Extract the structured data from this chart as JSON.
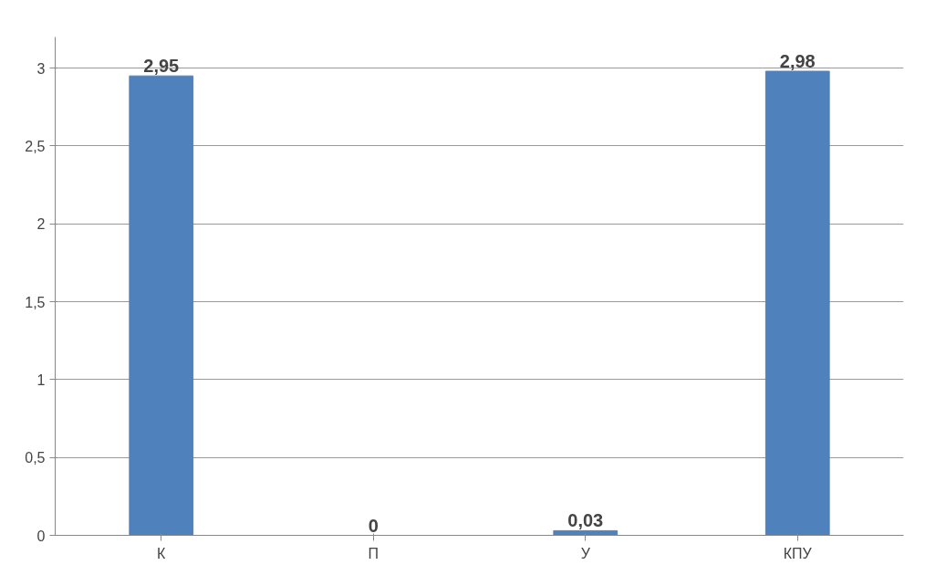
{
  "chart_data": {
    "type": "bar",
    "categories": [
      "К",
      "П",
      "У",
      "КПУ"
    ],
    "values": [
      2.95,
      0,
      0.03,
      2.98
    ],
    "value_labels": [
      "2,95",
      "0",
      "0,03",
      "2,98"
    ],
    "color": "#4f81bd",
    "ylim": [
      0,
      3.2
    ],
    "yticks": [
      0,
      {
        "value": 0.5,
        "label": "0,5"
      },
      1,
      {
        "value": 1.5,
        "label": "1,5"
      },
      2,
      {
        "value": 2.5,
        "label": "2,5"
      },
      3
    ],
    "grid": "y"
  }
}
